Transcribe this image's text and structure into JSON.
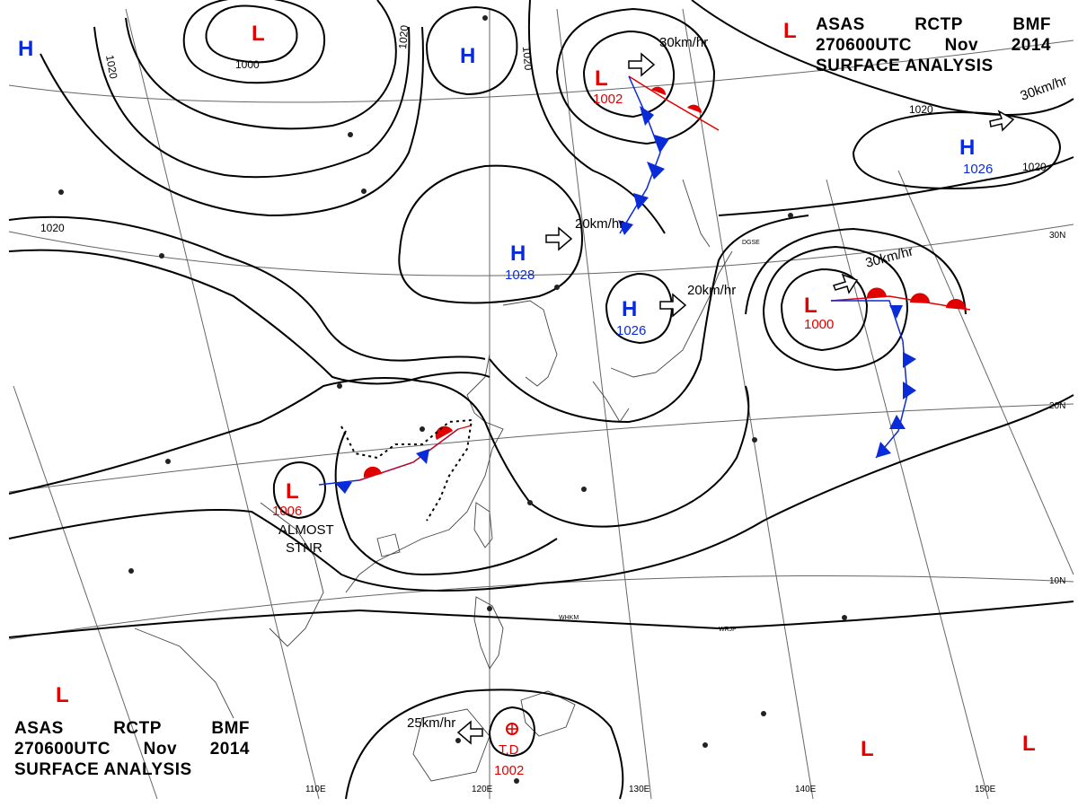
{
  "title_top_right": {
    "line1": [
      "ASAS",
      "RCTP",
      "BMF"
    ],
    "line2": [
      "270600UTC",
      "Nov",
      "2014"
    ],
    "line3": "SURFACE ANALYSIS"
  },
  "title_bottom_left": {
    "line1": [
      "ASAS",
      "RCTP",
      "BMF"
    ],
    "line2": [
      "270600UTC",
      "Nov",
      "2014"
    ],
    "line3": "SURFACE ANALYSIS"
  },
  "pressure_systems": [
    {
      "type": "L",
      "pressure": ""
    },
    {
      "type": "H",
      "pressure": ""
    },
    {
      "type": "H",
      "pressure": ""
    },
    {
      "type": "L",
      "pressure": "1002"
    },
    {
      "type": "H",
      "pressure": "1026"
    },
    {
      "type": "H",
      "pressure": "1028"
    },
    {
      "type": "H",
      "pressure": "1026"
    },
    {
      "type": "L",
      "pressure": "1000"
    },
    {
      "type": "L",
      "pressure": "1006"
    },
    {
      "type": "L",
      "pressure": ""
    },
    {
      "type": "L",
      "pressure": ""
    },
    {
      "type": "L",
      "pressure": ""
    }
  ],
  "tropical_depression": {
    "label": "T.D",
    "pressure": "1002"
  },
  "isobar_labels": [
    "1000",
    "1020",
    "1020",
    "1020",
    "1020",
    "1020",
    "1020"
  ],
  "motion_vectors": [
    "30km/hr",
    "30km/hr",
    "20km/hr",
    "20km/hr",
    "30km/hr",
    "25km/hr"
  ],
  "annotation": {
    "line1": "ALMOST",
    "line2": "STNR"
  },
  "latitude_labels": [
    "30N",
    "20N",
    "10N"
  ],
  "longitude_labels": [
    "110E",
    "120E",
    "130E",
    "140E",
    "150E"
  ],
  "station_labels": [
    "DGSE",
    "WHKM",
    "WRJP"
  ],
  "colors": {
    "low": "#e00000",
    "high": "#0a2bd8",
    "isobar": "#000000",
    "grid": "#555555",
    "coast": "#444444"
  }
}
